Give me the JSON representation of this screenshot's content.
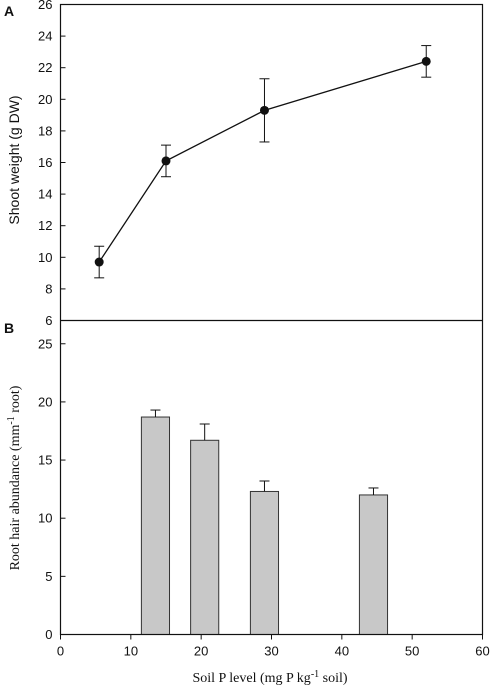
{
  "chart_data": [
    {
      "panel": "A",
      "type": "line",
      "ylabel": "Shoot weight (g DW)",
      "ylim": [
        6,
        26
      ],
      "yticks": [
        "6",
        "8",
        "10",
        "12",
        "14",
        "16",
        "18",
        "20",
        "22",
        "24",
        "26"
      ],
      "series": [
        {
          "x": [
            5.5,
            15,
            29,
            52
          ],
          "y": [
            9.7,
            16.1,
            19.3,
            22.4
          ],
          "yerr": [
            1.0,
            1.0,
            2.0,
            1.0
          ]
        }
      ]
    },
    {
      "panel": "B",
      "type": "bar",
      "ylabel_main": "Root hair abundance (mm",
      "ylabel_sup": "-1",
      "ylabel_tail": " root)",
      "ylim": [
        0,
        27
      ],
      "yticks": [
        "0",
        "5",
        "10",
        "15",
        "20",
        "25"
      ],
      "bars": [
        {
          "x": 13.5,
          "width": 4,
          "value": 18.7,
          "err": 0.6
        },
        {
          "x": 20.5,
          "width": 4,
          "value": 16.7,
          "err": 1.4
        },
        {
          "x": 29.0,
          "width": 4,
          "value": 12.3,
          "err": 0.9
        },
        {
          "x": 44.5,
          "width": 4,
          "value": 12.0,
          "err": 0.6
        }
      ],
      "xlabel_main": "Soil P level (mg P kg",
      "xlabel_sup": "-1",
      "xlabel_tail": " soil)",
      "xlim": [
        0,
        60
      ],
      "xticks": [
        "0",
        "10",
        "20",
        "30",
        "40",
        "50",
        "60"
      ]
    }
  ]
}
